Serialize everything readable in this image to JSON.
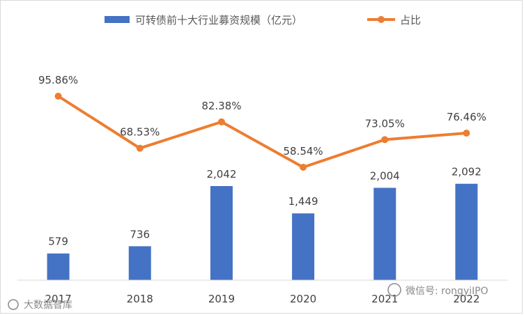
{
  "chart_data": {
    "type": "bar",
    "categories": [
      "2017",
      "2018",
      "2019",
      "2020",
      "2021",
      "2022"
    ],
    "series": [
      {
        "name": "可转债前十大行业募资规模（亿元）",
        "type": "bar",
        "color": "#4472c4",
        "values": [
          579,
          736,
          2042,
          1449,
          2004,
          2092
        ],
        "labels": [
          "579",
          "736",
          "2,042",
          "1,449",
          "2,004",
          "2,092"
        ]
      },
      {
        "name": "占比",
        "type": "line",
        "color": "#ed7d31",
        "values": [
          95.86,
          68.53,
          82.38,
          58.54,
          73.05,
          76.46
        ],
        "labels": [
          "95.86%",
          "68.53%",
          "82.38%",
          "58.54%",
          "73.05%",
          "76.46%"
        ]
      }
    ],
    "title": "",
    "legend_position": "top",
    "grid": false
  },
  "watermarks": {
    "left": "大数据智库",
    "right": "微信号: rongyiIPO"
  }
}
